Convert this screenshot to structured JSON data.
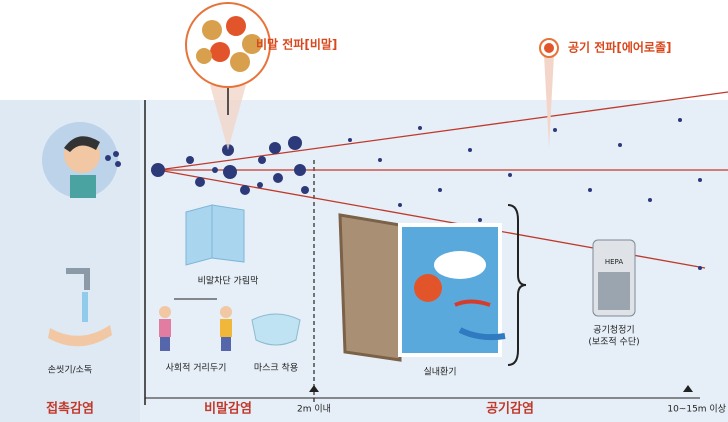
{
  "callouts": [
    "비말 전파[비말]",
    "공기 전파[에어로졸]"
  ],
  "measures": [
    "손씻기/소독",
    "비말차단 가림막",
    "사회적 거리두기",
    "마스크 착용",
    "실내환기",
    "공기청정기",
    "(보조적 수단)",
    "HEPA"
  ],
  "categories": [
    "접촉감염",
    "비말감염",
    "공기감염"
  ],
  "distances": [
    "2m 이내",
    "10~15m 이상"
  ]
}
